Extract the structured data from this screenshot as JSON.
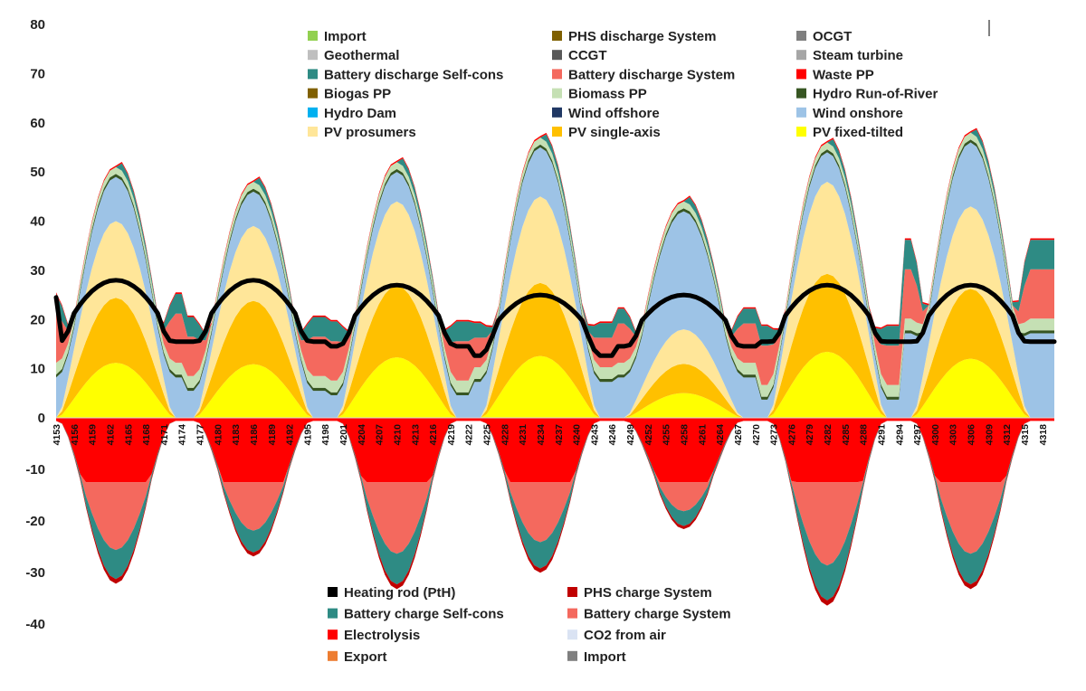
{
  "chart_data": {
    "type": "area",
    "title": "",
    "xlabel": "",
    "ylabel": "",
    "ylim": [
      -40,
      80
    ],
    "yticks": [
      80,
      70,
      60,
      50,
      40,
      30,
      20,
      10,
      0,
      -10,
      -20,
      -30,
      -40
    ],
    "x_range": [
      4153,
      4320
    ],
    "xticks": [
      4153,
      4156,
      4159,
      4162,
      4165,
      4168,
      4171,
      4174,
      4177,
      4180,
      4183,
      4186,
      4189,
      4192,
      4195,
      4198,
      4201,
      4204,
      4207,
      4210,
      4213,
      4216,
      4219,
      4222,
      4225,
      4228,
      4231,
      4234,
      4237,
      4240,
      4243,
      4246,
      4249,
      4252,
      4255,
      4258,
      4261,
      4264,
      4267,
      4270,
      4273,
      4276,
      4279,
      4282,
      4285,
      4288,
      4291,
      4294,
      4297,
      4300,
      4303,
      4306,
      4309,
      4312,
      4315,
      4318
    ],
    "grid": false,
    "supply_legend": [
      {
        "name": "Import",
        "color": "#92d050"
      },
      {
        "name": "PHS discharge System",
        "color": "#7f6000"
      },
      {
        "name": "OCGT",
        "color": "#7f7f7f"
      },
      {
        "name": "Geothermal",
        "color": "#bfbfbf"
      },
      {
        "name": "CCGT",
        "color": "#595959"
      },
      {
        "name": "Steam turbine",
        "color": "#a6a6a6"
      },
      {
        "name": "Battery discharge Self-cons",
        "color": "#2e8b84"
      },
      {
        "name": "Battery discharge System",
        "color": "#f4695e"
      },
      {
        "name": "Waste PP",
        "color": "#ff0000"
      },
      {
        "name": "Biogas PP",
        "color": "#806000"
      },
      {
        "name": "Biomass PP",
        "color": "#c5e0b4"
      },
      {
        "name": "Hydro Run-of-River",
        "color": "#375623"
      },
      {
        "name": "Hydro Dam",
        "color": "#00b0f0"
      },
      {
        "name": "Wind offshore",
        "color": "#203864"
      },
      {
        "name": "Wind onshore",
        "color": "#9dc3e6"
      },
      {
        "name": "PV prosumers",
        "color": "#ffe699"
      },
      {
        "name": "PV single-axis",
        "color": "#ffc000"
      },
      {
        "name": "PV fixed-tilted",
        "color": "#ffff00"
      }
    ],
    "demand_legend": [
      {
        "name": "Heating rod (PtH)",
        "color": "#000000"
      },
      {
        "name": "PHS charge System",
        "color": "#c00000"
      },
      {
        "name": "Battery charge Self-cons",
        "color": "#2e8b84"
      },
      {
        "name": "Battery charge System",
        "color": "#f4695e"
      },
      {
        "name": "Electrolysis",
        "color": "#ff0000"
      },
      {
        "name": "CO2 from air",
        "color": "#dae3f3"
      },
      {
        "name": "Export",
        "color": "#ed7d31"
      },
      {
        "name": "Import",
        "color": "#7f7f7f"
      }
    ],
    "supply_layers": [
      {
        "name": "PV fixed-tilted",
        "color": "#ffff00"
      },
      {
        "name": "PV single-axis",
        "color": "#ffc000"
      },
      {
        "name": "PV prosumers",
        "color": "#ffe699"
      },
      {
        "name": "Wind onshore",
        "color": "#9dc3e6"
      },
      {
        "name": "Hydro Run-of-River",
        "color": "#375623"
      },
      {
        "name": "Biomass PP",
        "color": "#c5e0b4"
      },
      {
        "name": "Battery discharge System",
        "color": "#f4695e"
      },
      {
        "name": "Battery discharge Self-cons",
        "color": "#2e8b84"
      },
      {
        "name": "Waste PP",
        "color": "#ff0000"
      }
    ],
    "demand_layers": [
      {
        "name": "Electrolysis",
        "color": "#ff0000"
      },
      {
        "name": "Battery charge System",
        "color": "#f4695e"
      },
      {
        "name": "Battery charge Self-cons",
        "color": "#2e8b84"
      },
      {
        "name": "PHS charge System",
        "color": "#c00000"
      }
    ],
    "heating_rod_line": {
      "name": "Heating rod (PtH)",
      "color": "#000000"
    },
    "days": [
      {
        "peak": 51,
        "mid": 4163,
        "wind_day": 8,
        "wind_night": 8,
        "hydro_night": 0,
        "bsys_night": 10,
        "bself_night": 4,
        "line_day": 28,
        "line_night": 25
      },
      {
        "peak": 48,
        "mid": 4186,
        "wind_day": 6,
        "wind_night": 5,
        "hydro_night": 3,
        "bsys_night": 8,
        "bself_night": 4,
        "line_day": 28,
        "line_night": 25
      },
      {
        "peak": 52,
        "mid": 4210,
        "wind_day": 5,
        "wind_night": 4,
        "hydro_night": 3,
        "bsys_night": 8,
        "bself_night": 4,
        "line_day": 27,
        "line_night": 24
      },
      {
        "peak": 57,
        "mid": 4234,
        "wind_day": 9,
        "wind_night": 7,
        "hydro_night": 2,
        "bsys_night": 6,
        "bself_night": 3,
        "line_day": 25,
        "line_night": 22
      },
      {
        "peak": 44,
        "mid": 4258,
        "wind_day": 23,
        "wind_night": 8,
        "hydro_night": 0,
        "bsys_night": 8,
        "bself_night": 3,
        "line_day": 25,
        "line_night": 24
      },
      {
        "peak": 56,
        "mid": 4282,
        "wind_day": 5,
        "wind_night": 3,
        "hydro_night": 3,
        "bsys_night": 8,
        "bself_night": 4,
        "line_day": 27,
        "line_night": 25
      },
      {
        "peak": 58,
        "mid": 4306,
        "wind_day": 12,
        "wind_night": 18,
        "hydro_night": 0,
        "bsys_night": 10,
        "bself_night": 6,
        "line_day": 27,
        "line_night": 25
      }
    ],
    "demand_troughs": [
      -30,
      -25,
      -31,
      -28,
      -20,
      -34,
      -31
    ]
  }
}
